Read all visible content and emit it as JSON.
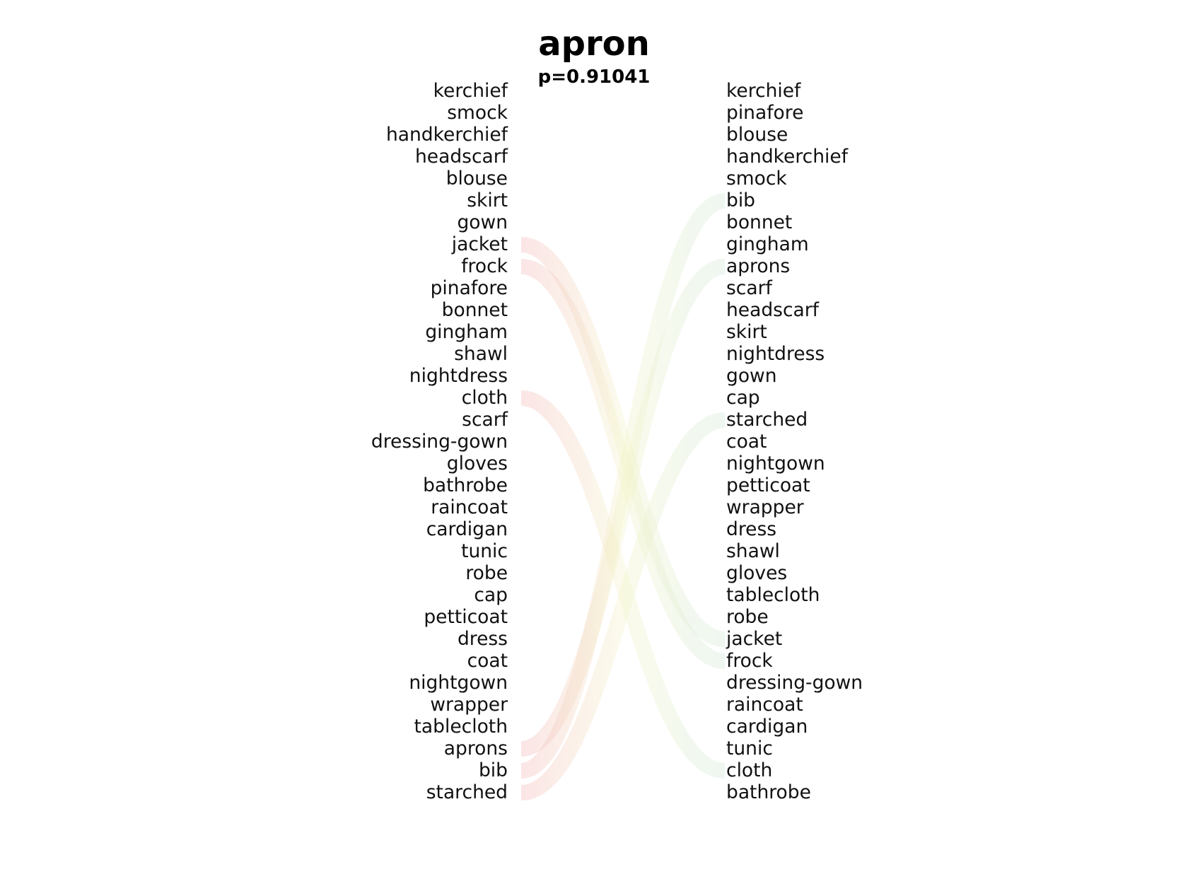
{
  "title": "apron",
  "subtitle": "p=0.91041",
  "left_words": [
    "kerchief",
    "smock",
    "handkerchief",
    "headscarf",
    "blouse",
    "skirt",
    "gown",
    "jacket",
    "frock",
    "pinafore",
    "bonnet",
    "gingham",
    "shawl",
    "nightdress",
    "cloth",
    "scarf",
    "dressing-gown",
    "gloves",
    "bathrobe",
    "raincoat",
    "cardigan",
    "tunic",
    "robe",
    "cap",
    "petticoat",
    "dress",
    "coat",
    "nightgown",
    "wrapper",
    "tablecloth",
    "aprons",
    "bib",
    "starched"
  ],
  "right_words": [
    "kerchief",
    "pinafore",
    "blouse",
    "handkerchief",
    "smock",
    "bib",
    "bonnet",
    "gingham",
    "aprons",
    "scarf",
    "headscarf",
    "skirt",
    "nightdress",
    "gown",
    "cap",
    "starched",
    "coat",
    "nightgown",
    "petticoat",
    "wrapper",
    "dress",
    "shawl",
    "gloves",
    "tablecloth",
    "robe",
    "jacket",
    "frock",
    "dressing-gown",
    "raincoat",
    "cardigan",
    "tunic",
    "cloth",
    "bathrobe"
  ],
  "links": [
    {
      "word": "jacket",
      "color": "#f4b6b6"
    },
    {
      "word": "frock",
      "color": "#f4b6b6"
    },
    {
      "word": "cloth",
      "color": "#f4b6b6"
    },
    {
      "word": "aprons",
      "color": "#cfe8d6"
    },
    {
      "word": "bib",
      "color": "#cfe8d6"
    },
    {
      "word": "starched",
      "color": "#cfe8d6"
    }
  ]
}
